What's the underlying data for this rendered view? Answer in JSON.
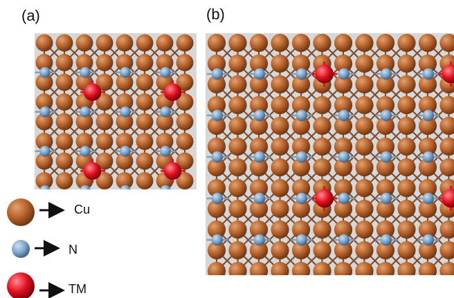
{
  "panels": {
    "a": {
      "label": "(a)"
    },
    "b": {
      "label": "(b)"
    }
  },
  "legend": {
    "cu": {
      "label": "Cu",
      "icon": "cu-atom-sphere"
    },
    "n": {
      "label": "N",
      "icon": "n-atom-sphere"
    },
    "tm": {
      "label": "TM",
      "icon": "tm-atom-sphere"
    }
  },
  "colors": {
    "background": "#d7d7d7",
    "cu": "#b5612a",
    "cu_dark": "#6e3512",
    "cu_light": "#e3a270",
    "n": "#7aa2c8",
    "n_light": "#cfe0f0",
    "tm": "#e0101f",
    "tm_light": "#ff8a90",
    "arrow": "#111111"
  }
}
